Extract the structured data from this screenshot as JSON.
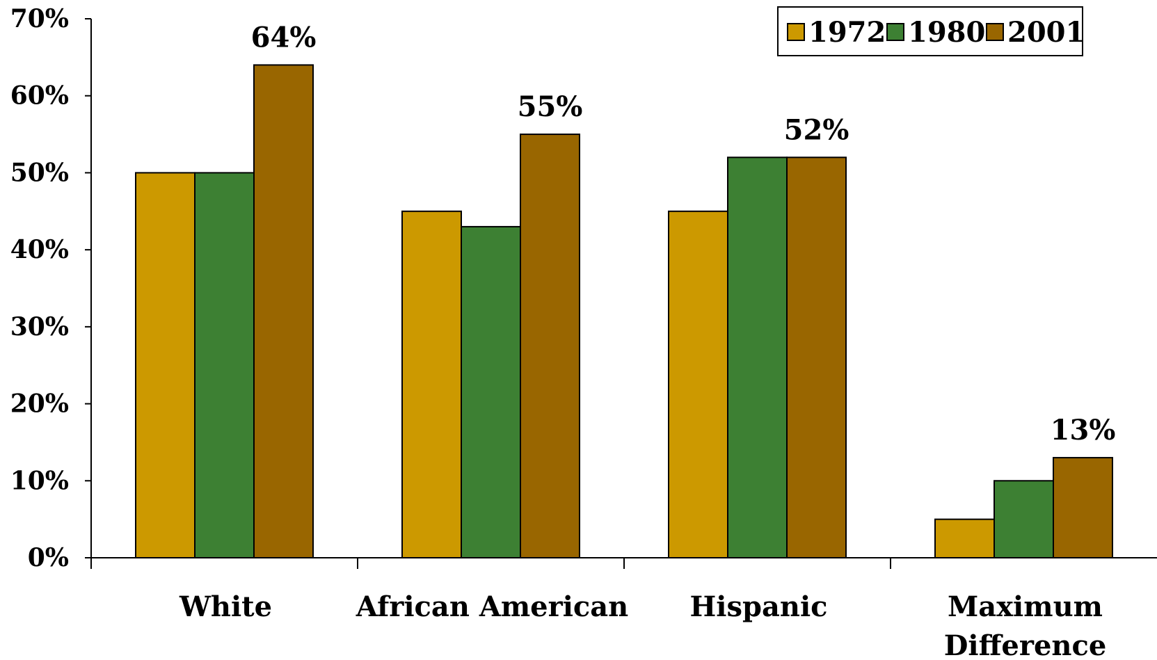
{
  "chart_data": {
    "type": "bar",
    "title": "",
    "xlabel": "",
    "ylabel": "",
    "ylim": [
      0,
      70
    ],
    "y_ticks": [
      "0%",
      "10%",
      "20%",
      "30%",
      "40%",
      "50%",
      "60%",
      "70%"
    ],
    "categories": [
      [
        "White"
      ],
      [
        "African American"
      ],
      [
        "Hispanic"
      ],
      [
        "Maximum",
        "Difference"
      ]
    ],
    "series": [
      {
        "name": "1972",
        "color": "#CC9900",
        "values": [
          50,
          45,
          45,
          5
        ]
      },
      {
        "name": "1980",
        "color": "#3D8033",
        "values": [
          50,
          43,
          52,
          10
        ]
      },
      {
        "name": "2001",
        "color": "#996600",
        "values": [
          64,
          55,
          52,
          13
        ]
      }
    ],
    "data_labels": [
      {
        "category_index": 0,
        "series_index": 2,
        "text": "64%"
      },
      {
        "category_index": 1,
        "series_index": 2,
        "text": "55%"
      },
      {
        "category_index": 2,
        "series_index": 2,
        "text": "52%"
      },
      {
        "category_index": 3,
        "series_index": 2,
        "text": "13%"
      }
    ],
    "legend_position": "top-right",
    "grid": false
  }
}
